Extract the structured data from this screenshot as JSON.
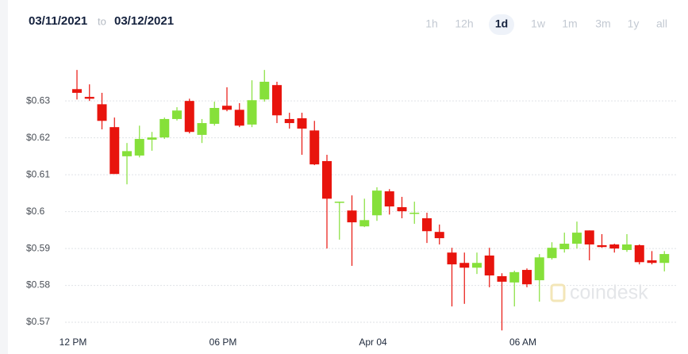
{
  "date_range": {
    "from": "03/11/2021",
    "separator": "to",
    "to": "03/12/2021"
  },
  "ranges": [
    "1h",
    "12h",
    "1d",
    "1w",
    "1m",
    "3m",
    "1y",
    "all"
  ],
  "selected_range": "1d",
  "watermark": "coindesk",
  "chart_data": {
    "type": "candlestick",
    "categories": [
      "12 PM",
      null,
      null,
      null,
      null,
      null,
      null,
      null,
      null,
      null,
      null,
      null,
      "06 PM",
      null,
      null,
      null,
      null,
      null,
      null,
      null,
      null,
      null,
      null,
      null,
      "Apr 04",
      null,
      null,
      null,
      null,
      null,
      null,
      null,
      null,
      null,
      null,
      null,
      "06 AM",
      null,
      null,
      null,
      null,
      null,
      null,
      null,
      null,
      null,
      null,
      null
    ],
    "open": [
      0.6332,
      0.6311,
      0.6291,
      0.6229,
      0.615,
      0.6152,
      0.6195,
      0.6201,
      0.6251,
      0.63,
      0.6208,
      0.6238,
      0.6287,
      0.6276,
      0.6236,
      0.6304,
      0.6343,
      0.6251,
      0.6253,
      0.622,
      0.6137,
      0.6024,
      0.6003,
      0.596,
      0.599,
      0.6055,
      0.6012,
      0.5995,
      0.5982,
      0.5945,
      0.5889,
      0.5861,
      0.5848,
      0.5881,
      0.5825,
      0.5808,
      0.5842,
      0.5814,
      0.5874,
      0.5898,
      0.5913,
      0.5949,
      0.5909,
      0.5911,
      0.5896,
      0.5909,
      0.5868,
      0.5861
    ],
    "high": [
      0.6384,
      0.6345,
      0.6322,
      0.6255,
      0.6186,
      0.6233,
      0.6216,
      0.6255,
      0.6283,
      0.6306,
      0.6251,
      0.6298,
      0.6337,
      0.6294,
      0.6356,
      0.6384,
      0.6352,
      0.6268,
      0.6268,
      0.6246,
      0.6154,
      0.6027,
      0.6044,
      0.6035,
      0.6066,
      0.6061,
      0.604,
      0.6027,
      0.5997,
      0.5965,
      0.5902,
      0.5889,
      0.5889,
      0.5902,
      0.5833,
      0.584,
      0.5846,
      0.5885,
      0.5917,
      0.5943,
      0.5973,
      0.5949,
      0.5939,
      0.5913,
      0.5939,
      0.5911,
      0.5893,
      0.5893
    ],
    "low": [
      0.6304,
      0.63,
      0.6223,
      0.6102,
      0.6074,
      0.6147,
      0.6165,
      0.6197,
      0.6247,
      0.6212,
      0.6186,
      0.6233,
      0.6272,
      0.6229,
      0.6229,
      0.6298,
      0.624,
      0.6225,
      0.6154,
      0.6126,
      0.59,
      0.5924,
      0.5853,
      0.5958,
      0.5975,
      0.5992,
      0.5982,
      0.5967,
      0.5915,
      0.5911,
      0.5743,
      0.575,
      0.5831,
      0.5795,
      0.5678,
      0.5743,
      0.5795,
      0.5756,
      0.587,
      0.5889,
      0.59,
      0.5868,
      0.5902,
      0.5889,
      0.5891,
      0.5857,
      0.5857,
      0.5838
    ],
    "close": [
      0.6322,
      0.6306,
      0.6246,
      0.6102,
      0.6164,
      0.6197,
      0.6201,
      0.6251,
      0.6274,
      0.6216,
      0.624,
      0.6281,
      0.6276,
      0.6233,
      0.6302,
      0.6352,
      0.6261,
      0.624,
      0.6225,
      0.6128,
      0.6035,
      0.6027,
      0.5971,
      0.5977,
      0.6057,
      0.6014,
      0.6001,
      0.5997,
      0.5947,
      0.5928,
      0.5857,
      0.5848,
      0.5861,
      0.5827,
      0.581,
      0.5836,
      0.5803,
      0.5876,
      0.5902,
      0.5913,
      0.5943,
      0.5911,
      0.5904,
      0.59,
      0.5911,
      0.5863,
      0.5861,
      0.5885
    ],
    "up_color": "#86e03a",
    "down_color": "#e8140d",
    "ylim": [
      0.567,
      0.6423
    ],
    "yticks": [
      {
        "value": 0.57,
        "label": "$0.57"
      },
      {
        "value": 0.58,
        "label": "$0.58"
      },
      {
        "value": 0.59,
        "label": "$0.59"
      },
      {
        "value": 0.6,
        "label": "$0.6"
      },
      {
        "value": 0.61,
        "label": "$0.61"
      },
      {
        "value": 0.62,
        "label": "$0.62"
      },
      {
        "value": 0.63,
        "label": "$0.63"
      }
    ],
    "grid": true
  }
}
